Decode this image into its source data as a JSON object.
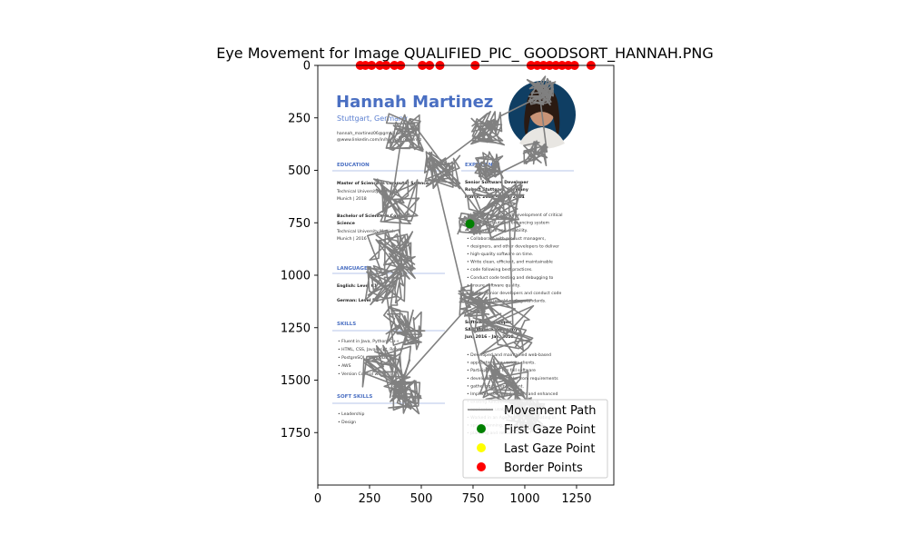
{
  "chart_data": {
    "type": "scatter",
    "title": "Eye Movement for Image QUALIFIED_PIC_ GOODSORT_HANNAH.PNG",
    "xlabel": "",
    "ylabel": "",
    "xlim": [
      0,
      1430
    ],
    "ylim": [
      2000,
      0
    ],
    "x_ticks": [
      "0",
      "250",
      "500",
      "750",
      "1000",
      "1250"
    ],
    "y_ticks": [
      "0",
      "250",
      "500",
      "750",
      "1000",
      "1250",
      "1500",
      "1750"
    ],
    "x_tick_values": [
      0,
      250,
      500,
      750,
      1000,
      1250
    ],
    "y_tick_values": [
      0,
      250,
      500,
      750,
      1000,
      1250,
      1500,
      1750
    ],
    "legend_position": "lower-right",
    "series": [
      {
        "name": "Movement Path",
        "kind": "line",
        "color": "#808080"
      },
      {
        "name": "First Gaze Point",
        "kind": "point",
        "color": "#008000",
        "points": [
          [
            735,
            755
          ]
        ]
      },
      {
        "name": "Last Gaze Point",
        "kind": "point",
        "color": "#ffff00",
        "points": []
      },
      {
        "name": "Border Points",
        "kind": "point",
        "color": "#ff0000",
        "points": [
          [
            205,
            0
          ],
          [
            230,
            0
          ],
          [
            260,
            0
          ],
          [
            300,
            0
          ],
          [
            330,
            0
          ],
          [
            370,
            0
          ],
          [
            400,
            0
          ],
          [
            505,
            0
          ],
          [
            540,
            0
          ],
          [
            590,
            0
          ],
          [
            760,
            0
          ],
          [
            1030,
            0
          ],
          [
            1060,
            0
          ],
          [
            1090,
            0
          ],
          [
            1120,
            0
          ],
          [
            1150,
            0
          ],
          [
            1180,
            0
          ],
          [
            1210,
            0
          ],
          [
            1240,
            0
          ],
          [
            1320,
            0
          ]
        ]
      }
    ],
    "background_document": {
      "name": "Hannah Martinez",
      "location": "Stuttgart, Germany",
      "email": "hannah_martinez06@gmail.com",
      "linkedin": "@www.linkedin.com/in/hannah_martinez",
      "education_heading": "EDUCATION",
      "edu1_degree": "Master of Science in Computer Science",
      "edu1_school": "Technical University of Munich",
      "edu1_place": "Munich | 2018",
      "edu2_degree": "Bachelor of Science in Computer",
      "edu2_degree2": "Science",
      "edu2_school": "Technical University Munich",
      "edu2_place": "Munich | 2016",
      "languages_heading": "LANGUAGES",
      "lang1": "English: Level C1",
      "lang2": "German: Level B2",
      "skills_heading": "SKILLS",
      "skills": [
        "Fluent in Java, Python, C++",
        "HTML, CSS, Javascript, React",
        "PostgreSQL, MongoDB",
        "AWS",
        "Version Control with GIT"
      ],
      "soft_heading": "SOFT SKILLS",
      "soft": [
        "Leadership",
        "Design"
      ],
      "experience_heading": "EXPERIENCE",
      "job1_title": "Senior Software Developer",
      "job1_company": "Robert Stuttgart, Germany",
      "job1_dates": "March, 2018 - April, 2024",
      "job1_bullets": [
        "Lead the design and development of critical",
        "software solutions, enhancing system",
        "performance and reliability.",
        "Collaborate with product managers,",
        "designers, and other developers to deliver",
        "high-quality software on time.",
        "Write clean, efficient, and maintainable",
        "code following best practices.",
        "Conduct code testing and debugging to",
        "ensure software quality.",
        "Mentor junior developers and conduct code",
        "reviews to uphold coding standards."
      ],
      "job2_title": "Software Developer",
      "job2_company": "SAP, Munich, Germany",
      "job2_dates": "Jun, 2016 - Jan, 2018",
      "job2_bullets": [
        "Developed and maintained web-based",
        "applications for various clients.",
        "Participated in the full software",
        "development lifecycle, from requirements",
        "gathering to deployment.",
        "Implemented new features and enhanced",
        "existing functionality to improve",
        "application usability.",
        "Worked in an Agile team, participating in",
        "sprint planning, stand-ups,",
        "planning and retrospectives."
      ]
    }
  }
}
